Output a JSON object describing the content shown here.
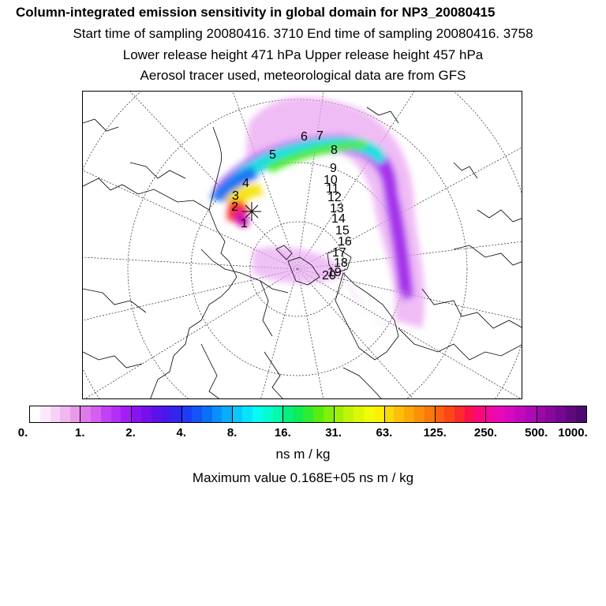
{
  "header": {
    "title": "Column-integrated emission sensitivity in global domain for NP3_20080415",
    "sampling": "Start time of sampling 20080416.  3710     End time of sampling 20080416.  3758",
    "release": "Lower release height  471 hPa        Upper release height  457 hPa",
    "tracer": "Aerosol tracer used, meteorological data are from GFS"
  },
  "map": {
    "projection": "polar stereographic (north)",
    "day_labels": [
      "1",
      "2",
      "3",
      "4",
      "5",
      "6",
      "7",
      "8",
      "9",
      "10",
      "11",
      "12",
      "13",
      "14",
      "15",
      "16",
      "17",
      "18",
      "19",
      "20"
    ]
  },
  "colorbar": {
    "tick_labels": [
      "0.",
      "1.",
      "2.",
      "4.",
      "8.",
      "16.",
      "31.",
      "63.",
      "125.",
      "250.",
      "500.",
      "1000."
    ],
    "colors": [
      "#ffffff",
      "#fbe9fb",
      "#f6d2f6",
      "#f0b8f0",
      "#e89ae8",
      "#df7ae8",
      "#d45ff0",
      "#c440f5",
      "#b52ef5",
      "#a21ef5",
      "#8b12f0",
      "#7410ec",
      "#5c12ea",
      "#4618ec",
      "#3026f0",
      "#1e3cf5",
      "#1256f5",
      "#0a70f8",
      "#0890fa",
      "#08aefc",
      "#08c8fc",
      "#06e4fc",
      "#06fcf0",
      "#06fcd0",
      "#06f8a8",
      "#06f080",
      "#10ec58",
      "#30ec30",
      "#58ec10",
      "#80f008",
      "#a0f008",
      "#c0f408",
      "#dcf808",
      "#f0fc08",
      "#fcf008",
      "#fcd808",
      "#fcc008",
      "#fca808",
      "#fc9008",
      "#fc7808",
      "#fc6010",
      "#fc4818",
      "#fc2a2a",
      "#fc1050",
      "#f8087a",
      "#f008a0",
      "#e808b8",
      "#d808c0",
      "#c408bc",
      "#b008b4",
      "#9c08a8",
      "#88089c",
      "#740890",
      "#600880",
      "#4c0870"
    ],
    "units": "ns m / kg"
  },
  "footer": {
    "max_value": "Maximum value  0.168E+05 ns m / kg"
  }
}
